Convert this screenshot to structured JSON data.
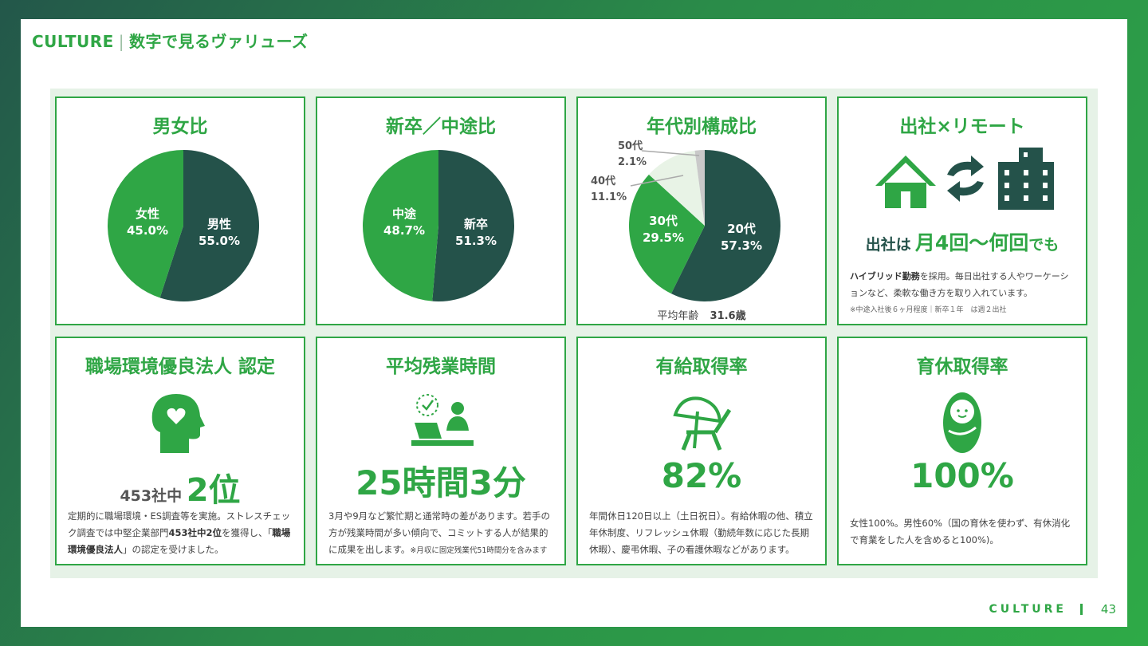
{
  "header": {
    "title": "CULTURE",
    "subtitle": "数字で見るヴァリューズ"
  },
  "colors": {
    "accent": "#2fa645",
    "dark": "#24524a",
    "light": "#e8f3e6",
    "grey": "#c9c9c9"
  },
  "cards": {
    "gender": {
      "title": "男女比",
      "chart_data": {
        "type": "pie",
        "series": [
          {
            "name": "男性",
            "value": 55.0,
            "label": "55.0%"
          },
          {
            "name": "女性",
            "value": 45.0,
            "label": "45.0%"
          }
        ]
      }
    },
    "hire": {
      "title": "新卒／中途比",
      "chart_data": {
        "type": "pie",
        "series": [
          {
            "name": "新卒",
            "value": 51.3,
            "label": "51.3%"
          },
          {
            "name": "中途",
            "value": 48.7,
            "label": "48.7%"
          }
        ]
      }
    },
    "age": {
      "title": "年代別構成比",
      "chart_data": {
        "type": "pie",
        "series": [
          {
            "name": "20代",
            "value": 57.3,
            "label": "57.3%"
          },
          {
            "name": "30代",
            "value": 29.5,
            "label": "29.5%"
          },
          {
            "name": "40代",
            "value": 11.1,
            "label": "11.1%"
          },
          {
            "name": "50代",
            "value": 2.1,
            "label": "2.1%"
          }
        ]
      },
      "avg_label": "平均年齢",
      "avg_value": "31.6歳"
    },
    "office": {
      "title": "出社×リモート",
      "icons": [
        "house-icon",
        "sync-arrows-icon",
        "office-building-icon"
      ],
      "headline_prefix": "出社は",
      "headline_main": "月4回〜何回",
      "headline_suffix": "でも",
      "desc_bold": "ハイブリッド勤務",
      "desc_rest": "を採用。毎日出社する人やワーケーションなど、柔軟な働き方を取り入れています。",
      "note": "※中途入社後６ヶ月程度｜新卒１年　は週２出社"
    },
    "award": {
      "title": "職場環境優良法人 認定",
      "icon": "head-heart-icon",
      "num_prefix": "453社中",
      "num_main": "2位",
      "desc_1": "定期的に職場環境・ES調査等を実施。ストレスチェック調査では中堅企業部門",
      "desc_bold1": "453社中2位",
      "desc_2": "を獲得し、「",
      "desc_bold2": "職場環境優良法人",
      "desc_3": "」の認定を受けました。"
    },
    "overtime": {
      "title": "平均残業時間",
      "icon": "desk-worker-clock-icon",
      "num_main": "25時間3分",
      "desc": "3月や9月など繁忙期と通常時の差があります。若手の方が残業時間が多い傾向で、コミットする人が結果的に成果を出します。",
      "note": "※月収に固定残業代51時間分を含みます"
    },
    "paid_leave": {
      "title": "有給取得率",
      "icon": "beach-chair-umbrella-icon",
      "num_main": "82%",
      "desc": "年間休日120日以上（土日祝日）。有給休暇の他、積立年休制度、リフレッシュ休暇（勤続年数に応じた長期休暇）、慶弔休暇、子の看護休暇などがあります。"
    },
    "childcare": {
      "title": "育休取得率",
      "icon": "swaddled-baby-icon",
      "num_main": "100%",
      "desc": "女性100%。男性60%（国の育休を使わず、有休消化で育業をした人を含めると100%)。"
    }
  },
  "footer": {
    "label": "CULTURE",
    "page": "43"
  }
}
